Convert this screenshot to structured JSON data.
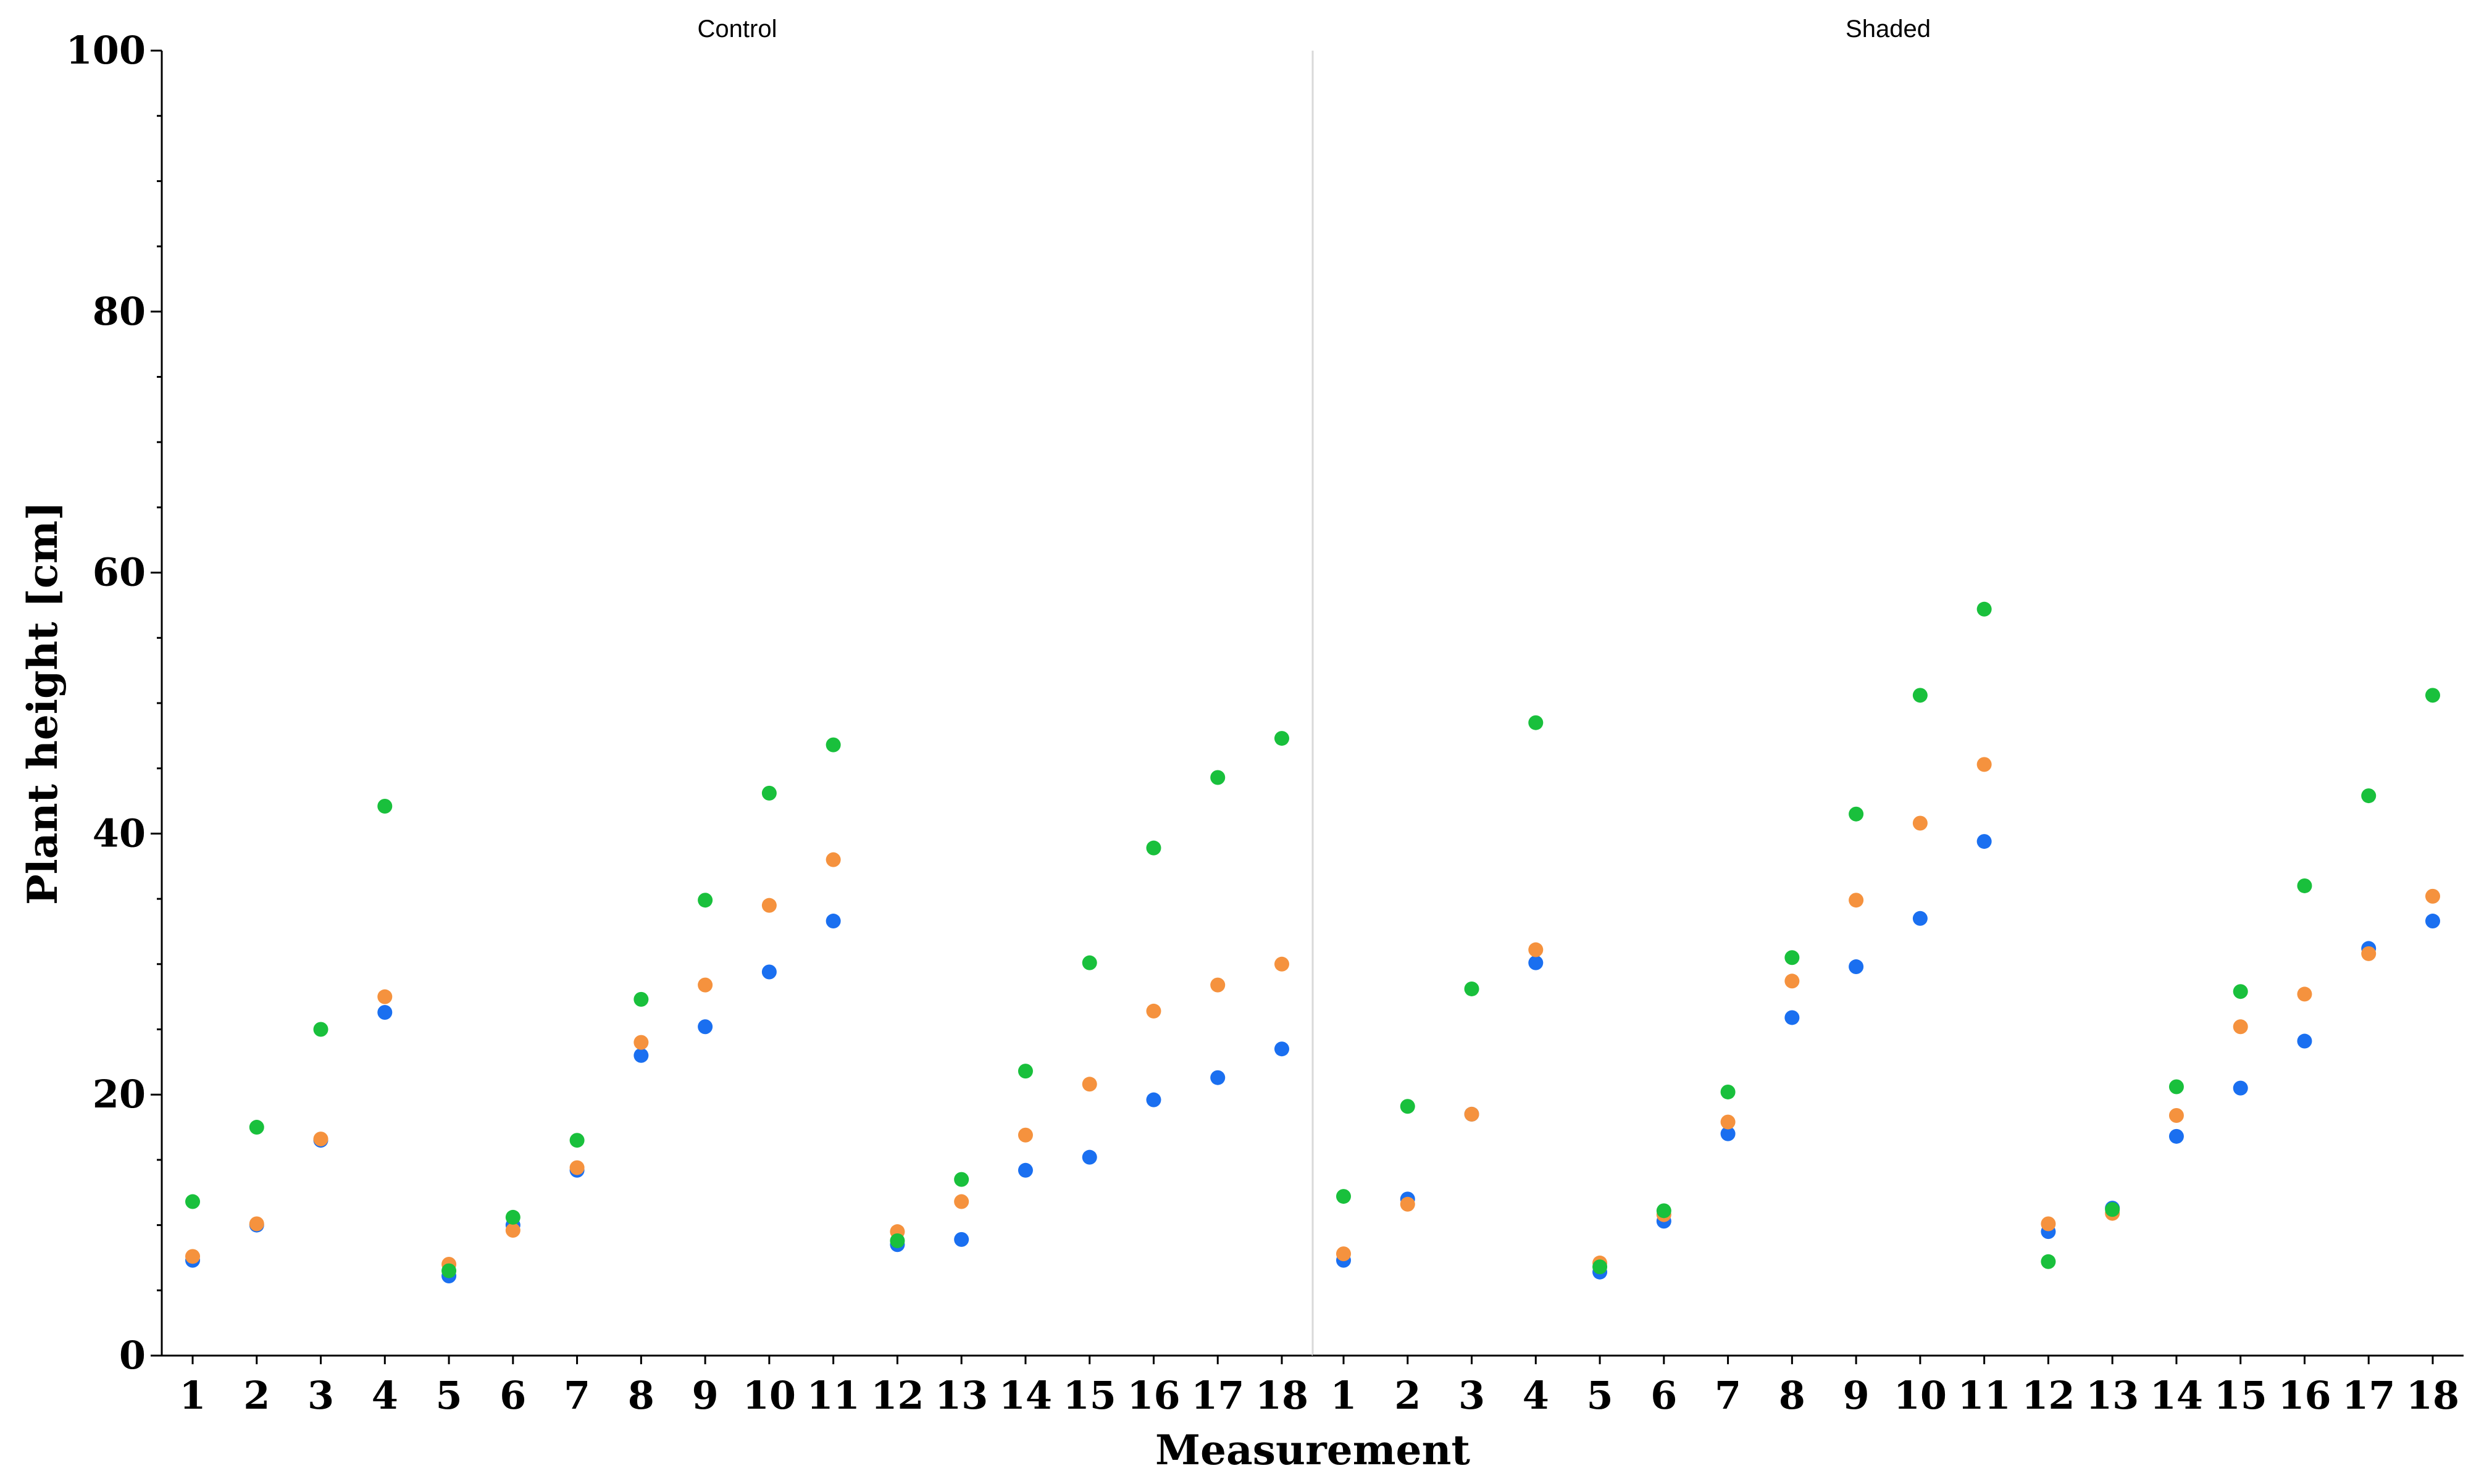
{
  "chart_data": {
    "type": "scatter",
    "ylabel": "Plant height [cm]",
    "xlabel": "Measurement",
    "ylim": [
      0,
      100
    ],
    "yticks": [
      0,
      20,
      40,
      60,
      80,
      100
    ],
    "grid": false,
    "series_colors": [
      "#1a6ff0",
      "#f5923e",
      "#19c03c"
    ],
    "panels": [
      {
        "title": "Control",
        "categories": [
          "1",
          "2",
          "3",
          "4",
          "5",
          "6",
          "7",
          "8",
          "9",
          "10",
          "11",
          "12",
          "13",
          "14",
          "15",
          "16",
          "17",
          "18"
        ],
        "series": [
          {
            "color": "#1a6ff0",
            "values": [
              7.3,
              10.0,
              16.5,
              26.3,
              6.1,
              10.0,
              14.2,
              23.0,
              25.2,
              29.4,
              33.3,
              8.5,
              8.9,
              14.2,
              15.2,
              19.6,
              21.3,
              23.5
            ]
          },
          {
            "color": "#f5923e",
            "values": [
              7.6,
              10.1,
              16.6,
              27.5,
              7.0,
              9.6,
              14.4,
              24.0,
              28.4,
              34.5,
              38.0,
              9.5,
              11.8,
              16.9,
              20.8,
              26.4,
              28.4,
              30.0
            ]
          },
          {
            "color": "#19c03c",
            "values": [
              11.8,
              17.5,
              25.0,
              42.1,
              6.5,
              10.6,
              16.5,
              27.3,
              34.9,
              43.1,
              46.8,
              8.8,
              13.5,
              21.8,
              30.1,
              38.9,
              44.3,
              47.3
            ]
          }
        ]
      },
      {
        "title": "Shaded",
        "categories": [
          "1",
          "2",
          "3",
          "4",
          "5",
          "6",
          "7",
          "8",
          "9",
          "10",
          "11",
          "12",
          "13",
          "14",
          "15",
          "16",
          "17",
          "18"
        ],
        "series": [
          {
            "color": "#1a6ff0",
            "values": [
              7.3,
              12.0,
              18.5,
              30.1,
              6.4,
              10.3,
              17.0,
              25.9,
              29.8,
              33.5,
              39.4,
              9.5,
              11.3,
              16.8,
              20.5,
              24.1,
              31.2,
              33.3
            ]
          },
          {
            "color": "#f5923e",
            "values": [
              7.8,
              11.6,
              18.5,
              31.1,
              7.1,
              10.8,
              17.9,
              28.7,
              34.9,
              40.8,
              45.3,
              10.1,
              10.9,
              18.4,
              25.2,
              27.7,
              30.8,
              35.2
            ]
          },
          {
            "color": "#19c03c",
            "values": [
              12.2,
              19.1,
              28.1,
              48.5,
              6.8,
              11.1,
              20.2,
              30.5,
              41.5,
              50.6,
              57.2,
              7.2,
              11.2,
              20.6,
              27.9,
              36.0,
              42.9,
              50.6
            ]
          }
        ]
      }
    ]
  }
}
